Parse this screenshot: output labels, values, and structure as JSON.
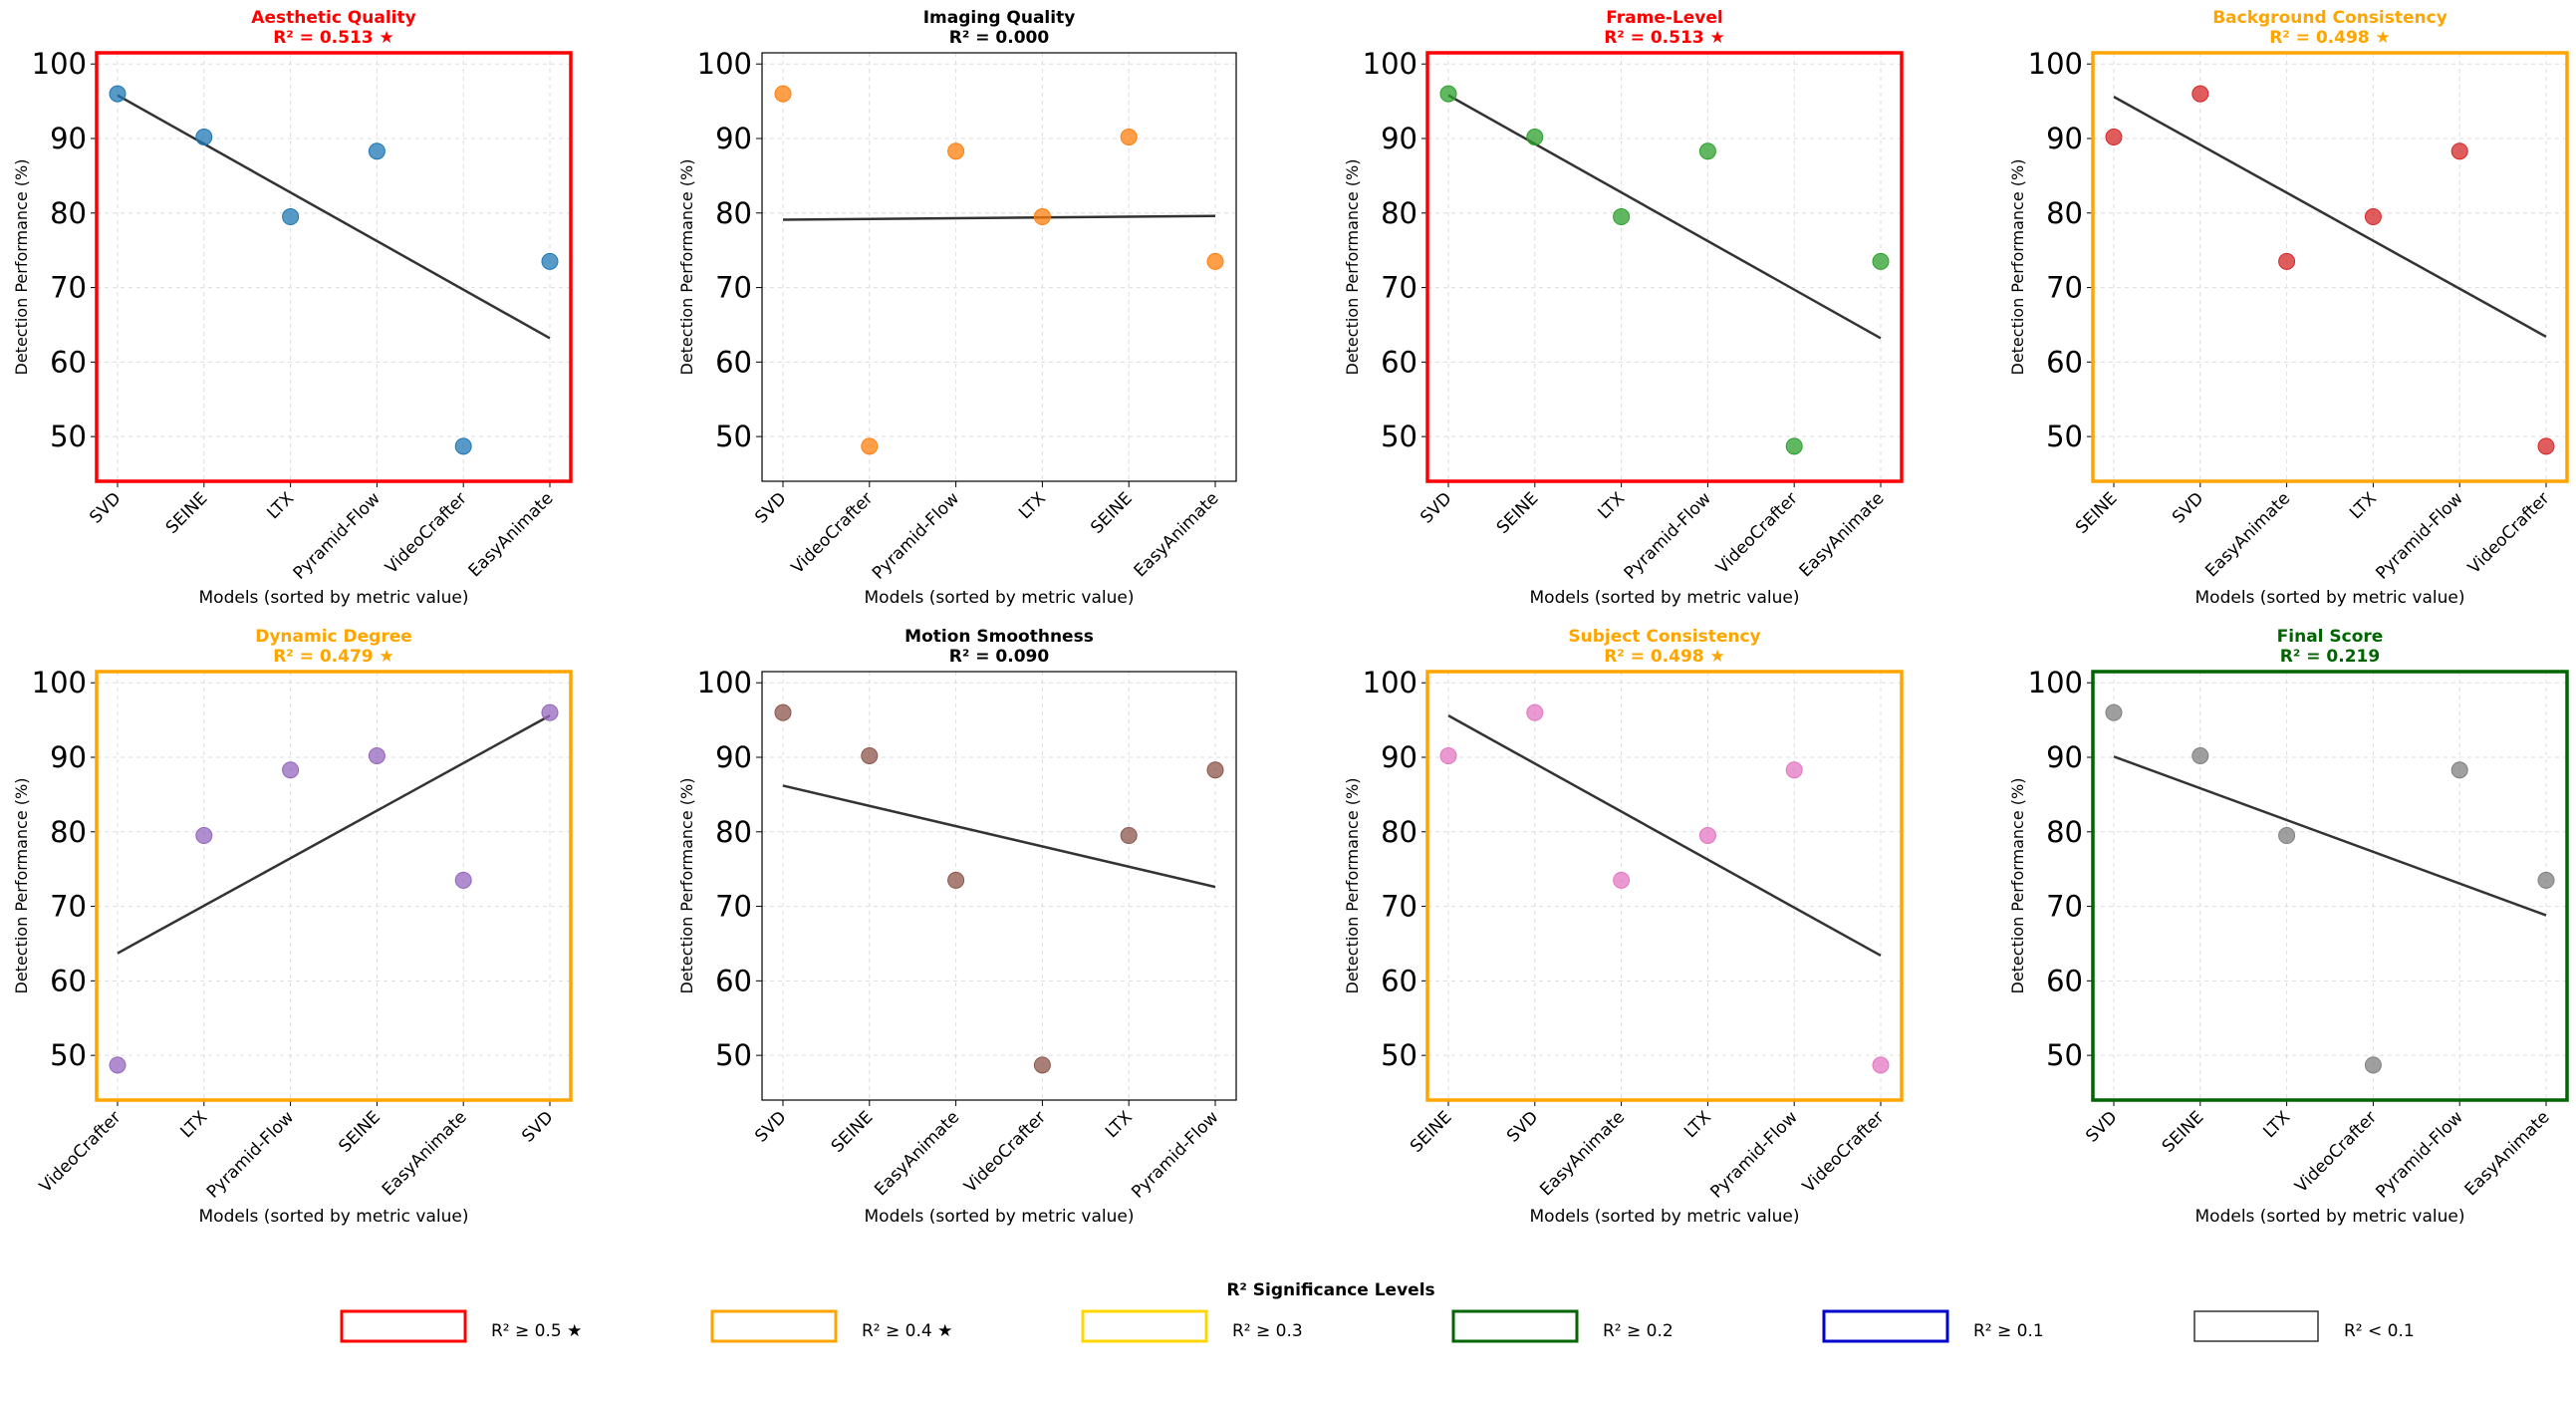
{
  "chart_data": [
    {
      "type": "scatter",
      "title": "Aesthetic Quality",
      "subtitle": "R² = 0.513 ★",
      "title_color": "#ff0000",
      "border_color": "#ff0000",
      "point_color": "#1f77b4",
      "xlabel": "Models (sorted by metric value)",
      "ylabel": "Detection Performance (%)",
      "categories": [
        "SVD",
        "SEINE",
        "LTX",
        "Pyramid-Flow",
        "VideoCrafter",
        "EasyAnimate"
      ],
      "values": [
        96.0,
        90.2,
        79.5,
        88.3,
        48.7,
        73.5
      ],
      "trend": [
        95.8,
        63.2
      ],
      "ylim": [
        44,
        101.5
      ],
      "yticks": [
        50,
        60,
        70,
        80,
        90,
        100
      ],
      "grid": true
    },
    {
      "type": "scatter",
      "title": "Imaging Quality",
      "subtitle": "R² = 0.000",
      "title_color": "#000000",
      "border_color": "#000000",
      "point_color": "#ff7f0e",
      "xlabel": "Models (sorted by metric value)",
      "ylabel": "Detection Performance (%)",
      "categories": [
        "SVD",
        "VideoCrafter",
        "Pyramid-Flow",
        "LTX",
        "SEINE",
        "EasyAnimate"
      ],
      "values": [
        96.0,
        48.7,
        88.3,
        79.5,
        90.2,
        73.5
      ],
      "trend": [
        79.1,
        79.6
      ],
      "ylim": [
        44,
        101.5
      ],
      "yticks": [
        50,
        60,
        70,
        80,
        90,
        100
      ],
      "grid": true
    },
    {
      "type": "scatter",
      "title": "Frame-Level",
      "subtitle": "R² = 0.513 ★",
      "title_color": "#ff0000",
      "border_color": "#ff0000",
      "point_color": "#2ca02c",
      "xlabel": "Models (sorted by metric value)",
      "ylabel": "Detection Performance (%)",
      "categories": [
        "SVD",
        "SEINE",
        "LTX",
        "Pyramid-Flow",
        "VideoCrafter",
        "EasyAnimate"
      ],
      "values": [
        96.0,
        90.2,
        79.5,
        88.3,
        48.7,
        73.5
      ],
      "trend": [
        95.8,
        63.2
      ],
      "ylim": [
        44,
        101.5
      ],
      "yticks": [
        50,
        60,
        70,
        80,
        90,
        100
      ],
      "grid": true
    },
    {
      "type": "scatter",
      "title": "Background Consistency",
      "subtitle": "R² = 0.498 ★",
      "title_color": "#ffa500",
      "border_color": "#ffa500",
      "point_color": "#d62728",
      "xlabel": "Models (sorted by metric value)",
      "ylabel": "Detection Performance (%)",
      "categories": [
        "SEINE",
        "SVD",
        "EasyAnimate",
        "LTX",
        "Pyramid-Flow",
        "VideoCrafter"
      ],
      "values": [
        90.2,
        96.0,
        73.5,
        79.5,
        88.3,
        48.7
      ],
      "trend": [
        95.6,
        63.4
      ],
      "ylim": [
        44,
        101.5
      ],
      "yticks": [
        50,
        60,
        70,
        80,
        90,
        100
      ],
      "grid": true
    },
    {
      "type": "scatter",
      "title": "Dynamic Degree",
      "subtitle": "R² = 0.479 ★",
      "title_color": "#ffa500",
      "border_color": "#ffa500",
      "point_color": "#9467bd",
      "xlabel": "Models (sorted by metric value)",
      "ylabel": "Detection Performance (%)",
      "categories": [
        "VideoCrafter",
        "LTX",
        "Pyramid-Flow",
        "SEINE",
        "EasyAnimate",
        "SVD"
      ],
      "values": [
        48.7,
        79.5,
        88.3,
        90.2,
        73.5,
        96.0
      ],
      "trend": [
        63.7,
        95.6
      ],
      "ylim": [
        44,
        101.5
      ],
      "yticks": [
        50,
        60,
        70,
        80,
        90,
        100
      ],
      "grid": true
    },
    {
      "type": "scatter",
      "title": "Motion Smoothness",
      "subtitle": "R² = 0.090",
      "title_color": "#000000",
      "border_color": "#000000",
      "point_color": "#8c564b",
      "xlabel": "Models (sorted by metric value)",
      "ylabel": "Detection Performance (%)",
      "categories": [
        "SVD",
        "SEINE",
        "EasyAnimate",
        "VideoCrafter",
        "LTX",
        "Pyramid-Flow"
      ],
      "values": [
        96.0,
        90.2,
        73.5,
        48.7,
        79.5,
        88.3
      ],
      "trend": [
        86.2,
        72.6
      ],
      "ylim": [
        44,
        101.5
      ],
      "yticks": [
        50,
        60,
        70,
        80,
        90,
        100
      ],
      "grid": true
    },
    {
      "type": "scatter",
      "title": "Subject Consistency",
      "subtitle": "R² = 0.498 ★",
      "title_color": "#ffa500",
      "border_color": "#ffa500",
      "point_color": "#e377c2",
      "xlabel": "Models (sorted by metric value)",
      "ylabel": "Detection Performance (%)",
      "categories": [
        "SEINE",
        "SVD",
        "EasyAnimate",
        "LTX",
        "Pyramid-Flow",
        "VideoCrafter"
      ],
      "values": [
        90.2,
        96.0,
        73.5,
        79.5,
        88.3,
        48.7
      ],
      "trend": [
        95.6,
        63.4
      ],
      "ylim": [
        44,
        101.5
      ],
      "yticks": [
        50,
        60,
        70,
        80,
        90,
        100
      ],
      "grid": true
    },
    {
      "type": "scatter",
      "title": "Final Score",
      "subtitle": "R² = 0.219",
      "title_color": "#006400",
      "border_color": "#006400",
      "point_color": "#7f7f7f",
      "xlabel": "Models (sorted by metric value)",
      "ylabel": "Detection Performance (%)",
      "categories": [
        "SVD",
        "SEINE",
        "LTX",
        "VideoCrafter",
        "Pyramid-Flow",
        "EasyAnimate"
      ],
      "values": [
        96.0,
        90.2,
        79.5,
        48.7,
        88.3,
        73.5
      ],
      "trend": [
        90.1,
        68.8
      ],
      "ylim": [
        44,
        101.5
      ],
      "yticks": [
        50,
        60,
        70,
        80,
        90,
        100
      ],
      "grid": true
    }
  ],
  "legend": {
    "title": "R² Significance Levels",
    "placement": "bottom-center",
    "items": [
      {
        "label": "R² ≥ 0.5 ★",
        "color": "#ff0000"
      },
      {
        "label": "R² ≥ 0.4 ★",
        "color": "#ffa500"
      },
      {
        "label": "R² ≥ 0.3",
        "color": "#ffd700"
      },
      {
        "label": "R² ≥ 0.2",
        "color": "#006400"
      },
      {
        "label": "R² ≥ 0.1",
        "color": "#0000cd"
      },
      {
        "label": "R² < 0.1",
        "color": "#333333"
      }
    ]
  }
}
